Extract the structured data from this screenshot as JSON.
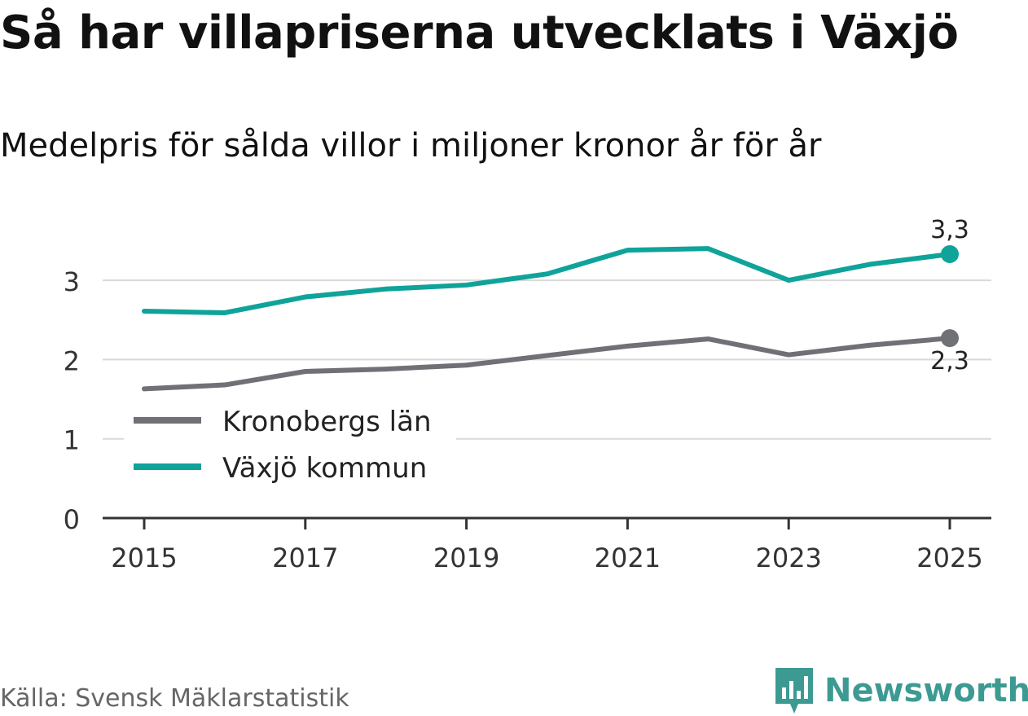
{
  "title": "Så har villapriserna utvecklats i Växjö",
  "subtitle": "Medelpris för sålda villor i miljoner kronor år för år",
  "source": "Källa: Svensk Mäklarstatistik",
  "brand": {
    "name": "Newsworthy",
    "icon": "newsworthy-logo-icon",
    "color": "#3c9a93"
  },
  "chart_data": {
    "type": "line",
    "title": "Så har villapriserna utvecklats i Växjö",
    "subtitle": "Medelpris för sålda villor i miljoner kronor år för år",
    "xlabel": "",
    "ylabel": "",
    "x": [
      2015,
      2016,
      2017,
      2018,
      2019,
      2020,
      2021,
      2022,
      2023,
      2024,
      2025
    ],
    "x_tick_labels": [
      "2015",
      "2017",
      "2019",
      "2021",
      "2023",
      "2025"
    ],
    "x_ticks": [
      2015,
      2017,
      2019,
      2021,
      2023,
      2025
    ],
    "y_tick_labels": [
      "0",
      "1",
      "2",
      "3"
    ],
    "y_ticks": [
      0,
      1,
      2,
      3
    ],
    "xlim": [
      2014.5,
      2025.5
    ],
    "ylim": [
      0,
      3.6
    ],
    "grid": true,
    "legend": "bottom-left",
    "series": [
      {
        "name": "Kronobergs län",
        "color": "#707077",
        "values": [
          1.63,
          1.68,
          1.85,
          1.88,
          1.93,
          2.05,
          2.17,
          2.26,
          2.06,
          2.18,
          2.27
        ],
        "end_label": "2,3"
      },
      {
        "name": "Växjö kommun",
        "color": "#0fa39a",
        "values": [
          2.61,
          2.59,
          2.79,
          2.89,
          2.94,
          3.08,
          3.38,
          3.4,
          3.0,
          3.2,
          3.33
        ],
        "end_label": "3,3"
      }
    ]
  }
}
